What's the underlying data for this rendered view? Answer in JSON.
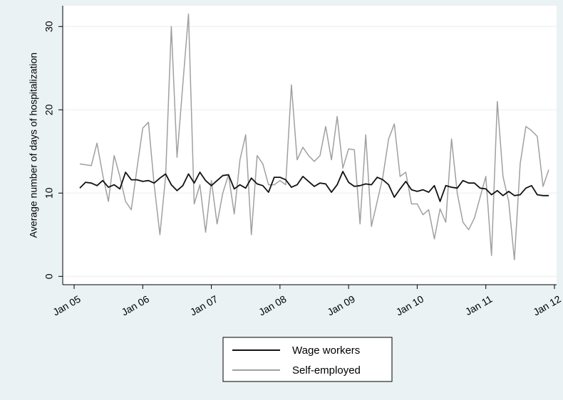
{
  "chart_data": {
    "type": "line",
    "title": "",
    "xlabel": "",
    "ylabel": "Average number of days of hospitalization",
    "x_ticks": [
      "Jan 05",
      "Jan 06",
      "Jan 07",
      "Jan 08",
      "Jan 09",
      "Jan 10",
      "Jan 11",
      "Jan 12"
    ],
    "xlim": [
      "2005-01",
      "2012-01"
    ],
    "ylim": [
      -1,
      32.5
    ],
    "y_ticks": [
      0,
      10,
      20,
      30
    ],
    "grid": true,
    "legend_position": "bottom",
    "x_start": "2005-02",
    "x_step": "1 month",
    "series": [
      {
        "name": "Wage workers",
        "color": "#111111",
        "values": [
          10.6,
          11.3,
          11.2,
          10.9,
          11.5,
          10.7,
          11.0,
          10.5,
          12.5,
          11.6,
          11.6,
          11.4,
          11.5,
          11.2,
          11.8,
          12.3,
          11.0,
          10.3,
          10.9,
          12.3,
          11.2,
          12.5,
          11.5,
          10.9,
          11.5,
          12.1,
          12.2,
          10.5,
          11.0,
          10.6,
          11.8,
          11.1,
          10.9,
          10.1,
          11.9,
          11.9,
          11.6,
          10.7,
          11.0,
          12.0,
          11.4,
          10.8,
          11.2,
          11.1,
          10.1,
          11.0,
          12.6,
          11.3,
          10.8,
          10.9,
          11.1,
          11.0,
          11.9,
          11.6,
          11.0,
          9.5,
          10.5,
          11.4,
          10.4,
          10.2,
          10.4,
          10.1,
          10.9,
          9.0,
          10.9,
          10.7,
          10.6,
          11.5,
          11.2,
          11.2,
          10.6,
          10.5,
          9.8,
          10.3,
          9.7,
          10.2,
          9.7,
          9.8,
          10.6,
          10.9,
          9.8,
          9.7,
          9.7
        ]
      },
      {
        "name": "Self-employed",
        "color": "#a0a0a0",
        "values": [
          13.5,
          13.4,
          13.3,
          16.0,
          12.2,
          9.0,
          14.5,
          12.0,
          9.0,
          8.0,
          13.0,
          17.8,
          18.5,
          11.0,
          5.0,
          12.0,
          30.0,
          14.3,
          23.0,
          31.5,
          8.7,
          11.0,
          5.3,
          11.5,
          6.3,
          10.0,
          12.2,
          7.5,
          14.0,
          17.0,
          5.0,
          14.5,
          13.5,
          11.0,
          11.0,
          11.5,
          11.0,
          23.0,
          14.0,
          15.5,
          14.5,
          13.8,
          14.5,
          18.0,
          14.0,
          19.2,
          13.0,
          15.3,
          15.2,
          6.3,
          17.0,
          6.0,
          9.0,
          12.0,
          16.5,
          18.3,
          12.0,
          12.5,
          8.7,
          8.7,
          7.4,
          8.0,
          4.5,
          8.1,
          6.5,
          16.5,
          10.0,
          6.5,
          5.6,
          7.0,
          9.5,
          12.0,
          2.5,
          21.0,
          12.0,
          9.0,
          2.0,
          13.5,
          18.0,
          17.5,
          16.8,
          10.8,
          12.8
        ]
      }
    ]
  }
}
